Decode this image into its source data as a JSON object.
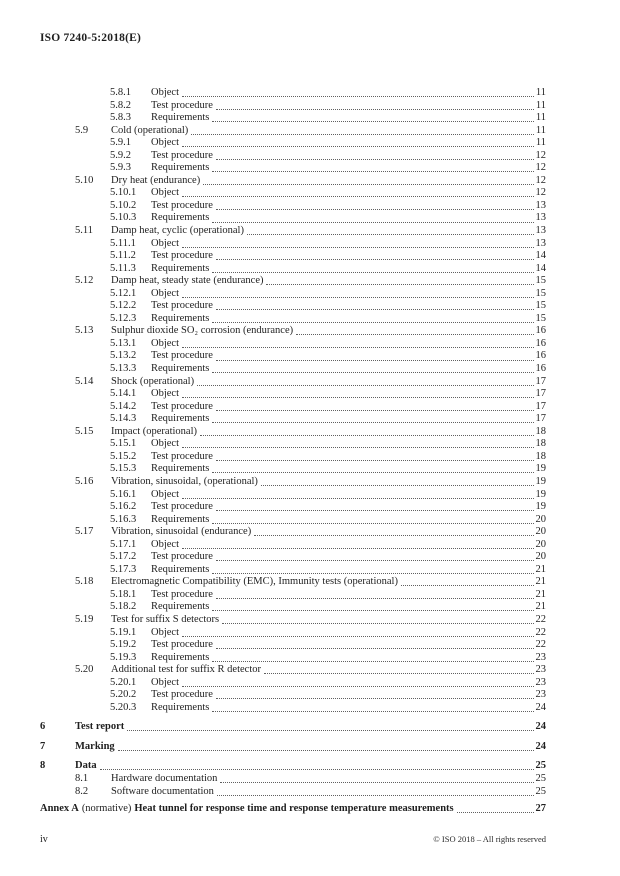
{
  "colors": {
    "background": "#ffffff",
    "ink": "#1f1f1f",
    "leader_dots": "#606060"
  },
  "header": {
    "title": "ISO 7240-5:2018(E)"
  },
  "toc": {
    "entries": [
      {
        "num": "5.8.1",
        "title": "Object",
        "page": "11",
        "level": 3
      },
      {
        "num": "5.8.2",
        "title": "Test procedure",
        "page": "11",
        "level": 3
      },
      {
        "num": "5.8.3",
        "title": "Requirements",
        "page": "11",
        "level": 3
      },
      {
        "num": "5.9",
        "title": "Cold (operational)",
        "page": "11",
        "level": 2
      },
      {
        "num": "5.9.1",
        "title": "Object",
        "page": "11",
        "level": 3
      },
      {
        "num": "5.9.2",
        "title": "Test procedure",
        "page": "12",
        "level": 3
      },
      {
        "num": "5.9.3",
        "title": "Requirements",
        "page": "12",
        "level": 3
      },
      {
        "num": "5.10",
        "title": "Dry heat (endurance)",
        "page": "12",
        "level": 2
      },
      {
        "num": "5.10.1",
        "title": "Object",
        "page": "12",
        "level": 3
      },
      {
        "num": "5.10.2",
        "title": "Test procedure",
        "page": "13",
        "level": 3
      },
      {
        "num": "5.10.3",
        "title": "Requirements",
        "page": "13",
        "level": 3
      },
      {
        "num": "5.11",
        "title": "Damp heat, cyclic (operational)",
        "page": "13",
        "level": 2
      },
      {
        "num": "5.11.1",
        "title": "Object",
        "page": "13",
        "level": 3
      },
      {
        "num": "5.11.2",
        "title": "Test procedure",
        "page": "14",
        "level": 3
      },
      {
        "num": "5.11.3",
        "title": "Requirements",
        "page": "14",
        "level": 3
      },
      {
        "num": "5.12",
        "title": "Damp heat, steady state (endurance)",
        "page": "15",
        "level": 2
      },
      {
        "num": "5.12.1",
        "title": "Object",
        "page": "15",
        "level": 3
      },
      {
        "num": "5.12.2",
        "title": "Test procedure",
        "page": "15",
        "level": 3
      },
      {
        "num": "5.12.3",
        "title": "Requirements",
        "page": "15",
        "level": 3
      },
      {
        "num": "5.13",
        "title": "Sulphur dioxide SO₂ corrosion (endurance)",
        "page": "16",
        "level": 2
      },
      {
        "num": "5.13.1",
        "title": "Object",
        "page": "16",
        "level": 3
      },
      {
        "num": "5.13.2",
        "title": "Test procedure",
        "page": "16",
        "level": 3
      },
      {
        "num": "5.13.3",
        "title": "Requirements",
        "page": "16",
        "level": 3
      },
      {
        "num": "5.14",
        "title": "Shock (operational)",
        "page": "17",
        "level": 2
      },
      {
        "num": "5.14.1",
        "title": "Object",
        "page": "17",
        "level": 3
      },
      {
        "num": "5.14.2",
        "title": "Test procedure",
        "page": "17",
        "level": 3
      },
      {
        "num": "5.14.3",
        "title": "Requirements",
        "page": "17",
        "level": 3
      },
      {
        "num": "5.15",
        "title": "Impact (operational)",
        "page": "18",
        "level": 2
      },
      {
        "num": "5.15.1",
        "title": "Object",
        "page": "18",
        "level": 3
      },
      {
        "num": "5.15.2",
        "title": "Test procedure",
        "page": "18",
        "level": 3
      },
      {
        "num": "5.15.3",
        "title": "Requirements",
        "page": "19",
        "level": 3
      },
      {
        "num": "5.16",
        "title": "Vibration, sinusoidal, (operational)",
        "page": "19",
        "level": 2
      },
      {
        "num": "5.16.1",
        "title": "Object",
        "page": "19",
        "level": 3
      },
      {
        "num": "5.16.2",
        "title": "Test procedure",
        "page": "19",
        "level": 3
      },
      {
        "num": "5.16.3",
        "title": "Requirements",
        "page": "20",
        "level": 3
      },
      {
        "num": "5.17",
        "title": "Vibration, sinusoidal (endurance)",
        "page": "20",
        "level": 2
      },
      {
        "num": "5.17.1",
        "title": "Object",
        "page": "20",
        "level": 3
      },
      {
        "num": "5.17.2",
        "title": "Test procedure",
        "page": "20",
        "level": 3
      },
      {
        "num": "5.17.3",
        "title": "Requirements",
        "page": "21",
        "level": 3
      },
      {
        "num": "5.18",
        "title": "Electromagnetic Compatibility (EMC), Immunity tests (operational)",
        "page": "21",
        "level": 2
      },
      {
        "num": "5.18.1",
        "title": "Test procedure",
        "page": "21",
        "level": 3
      },
      {
        "num": "5.18.2",
        "title": "Requirements",
        "page": "21",
        "level": 3
      },
      {
        "num": "5.19",
        "title": "Test for suffix S detectors",
        "page": "22",
        "level": 2
      },
      {
        "num": "5.19.1",
        "title": "Object",
        "page": "22",
        "level": 3
      },
      {
        "num": "5.19.2",
        "title": "Test procedure",
        "page": "22",
        "level": 3
      },
      {
        "num": "5.19.3",
        "title": "Requirements",
        "page": "23",
        "level": 3
      },
      {
        "num": "5.20",
        "title": "Additional test for suffix R detector",
        "page": "23",
        "level": 2
      },
      {
        "num": "5.20.1",
        "title": "Object",
        "page": "23",
        "level": 3
      },
      {
        "num": "5.20.2",
        "title": "Test procedure",
        "page": "23",
        "level": 3
      },
      {
        "num": "5.20.3",
        "title": "Requirements",
        "page": "24",
        "level": 3
      },
      {
        "num": "6",
        "title": "Test report",
        "page": "24",
        "level": 1
      },
      {
        "num": "7",
        "title": "Marking",
        "page": "24",
        "level": 1
      },
      {
        "num": "8",
        "title": "Data",
        "page": "25",
        "level": 1
      },
      {
        "num": "8.1",
        "title": "Hardware documentation",
        "page": "25",
        "level": 2
      },
      {
        "num": "8.2",
        "title": "Software documentation",
        "page": "25",
        "level": 2
      }
    ]
  },
  "annex": {
    "label": "Annex A",
    "kind": "(normative)",
    "title": "Heat tunnel for response time and response temperature measurements",
    "page": "27"
  },
  "footer": {
    "folio": "iv",
    "copyright": "© ISO 2018 – All rights reserved"
  }
}
